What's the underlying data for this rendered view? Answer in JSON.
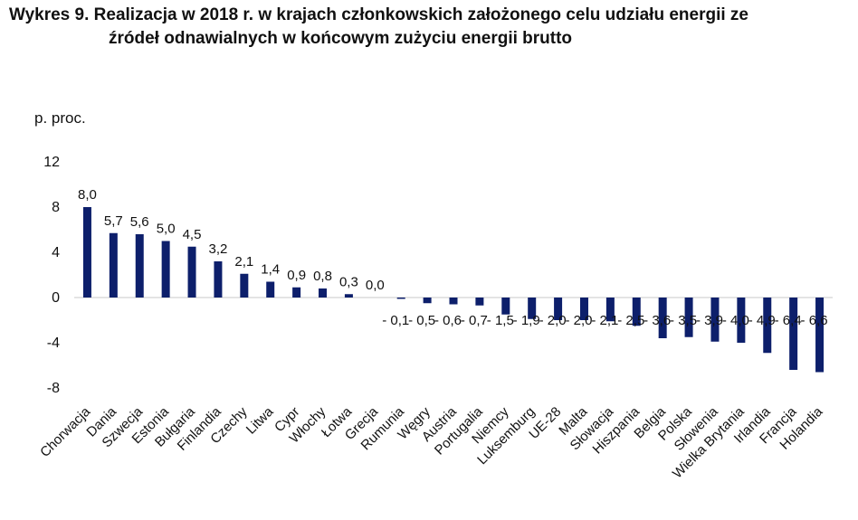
{
  "title_line1": "Wykres 9. Realizacja w 2018 r. w krajach członkowskich założonego celu udziału energii ze",
  "title_line2": "źródeł odnawialnych w końcowym zużyciu energii brutto",
  "chart_data": {
    "type": "bar",
    "ylabel": "p. proc.",
    "ylim": [
      -8,
      12
    ],
    "yticks": [
      -8,
      -4,
      0,
      4,
      8,
      12
    ],
    "ytick_labels": [
      "-8",
      "-4",
      "0",
      "4",
      "8",
      "12"
    ],
    "grid": false,
    "legend": "none",
    "bar_color": "#0d1f6b",
    "categories": [
      "Chorwacja",
      "Dania",
      "Szwecja",
      "Estonia",
      "Bułgaria",
      "Finlandia",
      "Czechy",
      "Litwa",
      "Cypr",
      "Włochy",
      "Łotwa",
      "Grecja",
      "Rumunia",
      "Węgry",
      "Austria",
      "Portugalia",
      "Niemcy",
      "Luksemburg",
      "UE-28",
      "Malta",
      "Słowacja",
      "Hiszpania",
      "Belgia",
      "Polska",
      "Słowenia",
      "Wielka Brytania",
      "Irlandia",
      "Francja",
      "Holandia"
    ],
    "values": [
      8.0,
      5.7,
      5.6,
      5.0,
      4.5,
      3.2,
      2.1,
      1.4,
      0.9,
      0.8,
      0.3,
      0.0,
      -0.1,
      -0.5,
      -0.6,
      -0.7,
      -1.5,
      -1.9,
      -2.0,
      -2.0,
      -2.1,
      -2.5,
      -3.6,
      -3.5,
      -3.9,
      -4.0,
      -4.9,
      -6.4,
      -6.6
    ],
    "value_labels": [
      "8,0",
      "5,7",
      "5,6",
      "5,0",
      "4,5",
      "3,2",
      "2,1",
      "1,4",
      "0,9",
      "0,8",
      "0,3",
      "0,0",
      "- 0,1",
      "- 0,5",
      "- 0,6",
      "- 0,7",
      "- 1,5",
      "- 1,9",
      "- 2,0",
      "- 2,0",
      "- 2,1",
      "- 2,5",
      "- 3,6",
      "- 3,5",
      "- 3,9",
      "- 4,0",
      "- 4,9",
      "- 6,4",
      "- 6,6"
    ]
  }
}
